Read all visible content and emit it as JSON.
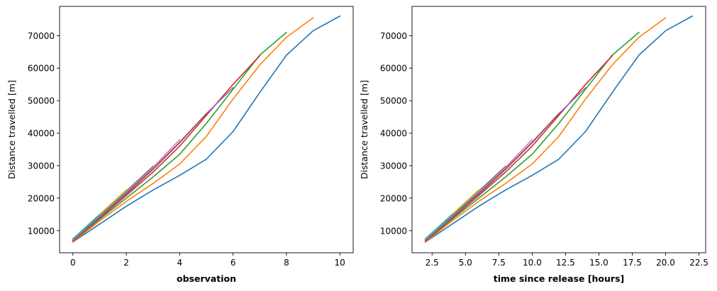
{
  "chart_data": [
    {
      "type": "line",
      "xlabel": "observation",
      "ylabel": "Distance travelled [m]",
      "xlim": [
        -0.5,
        10.5
      ],
      "ylim": [
        3200,
        79000
      ],
      "xticks": [
        0,
        2,
        4,
        6,
        8,
        10
      ],
      "xtick_labels": [
        "0",
        "2",
        "4",
        "6",
        "8",
        "10"
      ],
      "yticks": [
        10000,
        20000,
        30000,
        40000,
        50000,
        60000,
        70000
      ],
      "ytick_labels": [
        "10000",
        "20000",
        "30000",
        "40000",
        "50000",
        "60000",
        "70000"
      ],
      "grid": false,
      "series": [
        {
          "color": "#1f77b4",
          "x": [
            0,
            1,
            2,
            3,
            4,
            5,
            6,
            7,
            8,
            9,
            10
          ],
          "y": [
            6500,
            12000,
            17500,
            22500,
            27000,
            32000,
            40500,
            52500,
            64000,
            71500,
            76000
          ]
        },
        {
          "color": "#ff7f0e",
          "x": [
            0,
            1,
            2,
            3,
            4,
            5,
            6,
            7,
            8,
            9
          ],
          "y": [
            6500,
            13000,
            19000,
            24500,
            30500,
            39000,
            50500,
            61000,
            69500,
            75500
          ]
        },
        {
          "color": "#2ca02c",
          "x": [
            0,
            1,
            2,
            3,
            4,
            5,
            6,
            7,
            8
          ],
          "y": [
            6800,
            13500,
            20000,
            26500,
            33500,
            43000,
            53500,
            64000,
            71000
          ]
        },
        {
          "color": "#d62728",
          "x": [
            0,
            1,
            2,
            3,
            4,
            5,
            6,
            7
          ],
          "y": [
            6800,
            13800,
            20800,
            28000,
            36000,
            45500,
            55000,
            63800
          ]
        },
        {
          "color": "#9467bd",
          "x": [
            0,
            1,
            2,
            3,
            4,
            5,
            6
          ],
          "y": [
            7000,
            14000,
            21200,
            28800,
            37000,
            46000,
            54000
          ]
        },
        {
          "color": "#8c564b",
          "x": [
            0,
            1,
            2,
            3,
            4,
            5
          ],
          "y": [
            7000,
            14200,
            21500,
            29000,
            37200,
            46000
          ]
        },
        {
          "color": "#e377c2",
          "x": [
            0,
            1,
            2,
            3,
            4
          ],
          "y": [
            7200,
            14500,
            22000,
            29500,
            38000
          ]
        },
        {
          "color": "#7f7f7f",
          "x": [
            0,
            1,
            2,
            3
          ],
          "y": [
            7300,
            14600,
            22200,
            29800
          ]
        },
        {
          "color": "#bcbd22",
          "x": [
            0,
            1,
            2
          ],
          "y": [
            7500,
            15000,
            22500
          ]
        },
        {
          "color": "#17becf",
          "x": [
            0,
            1
          ],
          "y": [
            7500,
            15000
          ]
        }
      ]
    },
    {
      "type": "line",
      "xlabel": "time since release [hours]",
      "ylabel": "Distance travelled [m]",
      "xlim": [
        1.0,
        23.0
      ],
      "ylim": [
        3200,
        79000
      ],
      "xticks": [
        2.5,
        5.0,
        7.5,
        10.0,
        12.5,
        15.0,
        17.5,
        20.0,
        22.5
      ],
      "xtick_labels": [
        "2.5",
        "5.0",
        "7.5",
        "10.0",
        "12.5",
        "15.0",
        "17.5",
        "20.0",
        "22.5"
      ],
      "yticks": [
        10000,
        20000,
        30000,
        40000,
        50000,
        60000,
        70000
      ],
      "ytick_labels": [
        "10000",
        "20000",
        "30000",
        "40000",
        "50000",
        "60000",
        "70000"
      ],
      "grid": false,
      "series": [
        {
          "color": "#1f77b4",
          "x": [
            2,
            4,
            6,
            8,
            10,
            12,
            14,
            16,
            18,
            20,
            22
          ],
          "y": [
            6500,
            12000,
            17500,
            22500,
            27000,
            32000,
            40500,
            52500,
            64000,
            71500,
            76000
          ]
        },
        {
          "color": "#ff7f0e",
          "x": [
            2,
            4,
            6,
            8,
            10,
            12,
            14,
            16,
            18,
            20
          ],
          "y": [
            6500,
            13000,
            19000,
            24500,
            30500,
            39000,
            50500,
            61000,
            69500,
            75500
          ]
        },
        {
          "color": "#2ca02c",
          "x": [
            2,
            4,
            6,
            8,
            10,
            12,
            14,
            16,
            18
          ],
          "y": [
            6800,
            13500,
            20000,
            26500,
            33500,
            43000,
            53500,
            64000,
            71000
          ]
        },
        {
          "color": "#d62728",
          "x": [
            2,
            4,
            6,
            8,
            10,
            12,
            14,
            16
          ],
          "y": [
            6800,
            13800,
            20800,
            28000,
            36000,
            45500,
            55000,
            63800
          ]
        },
        {
          "color": "#9467bd",
          "x": [
            2,
            4,
            6,
            8,
            10,
            12,
            14
          ],
          "y": [
            7000,
            14000,
            21200,
            28800,
            37000,
            46000,
            54000
          ]
        },
        {
          "color": "#8c564b",
          "x": [
            2,
            4,
            6,
            8,
            10,
            12
          ],
          "y": [
            7000,
            14200,
            21500,
            29000,
            37200,
            46000
          ]
        },
        {
          "color": "#e377c2",
          "x": [
            2,
            4,
            6,
            8,
            10
          ],
          "y": [
            7200,
            14500,
            22000,
            29500,
            38000
          ]
        },
        {
          "color": "#7f7f7f",
          "x": [
            2,
            4,
            6,
            8
          ],
          "y": [
            7300,
            14600,
            22200,
            29800
          ]
        },
        {
          "color": "#bcbd22",
          "x": [
            2,
            4,
            6
          ],
          "y": [
            7500,
            15000,
            22500
          ]
        },
        {
          "color": "#17becf",
          "x": [
            2,
            4
          ],
          "y": [
            7500,
            15000
          ]
        }
      ]
    }
  ]
}
